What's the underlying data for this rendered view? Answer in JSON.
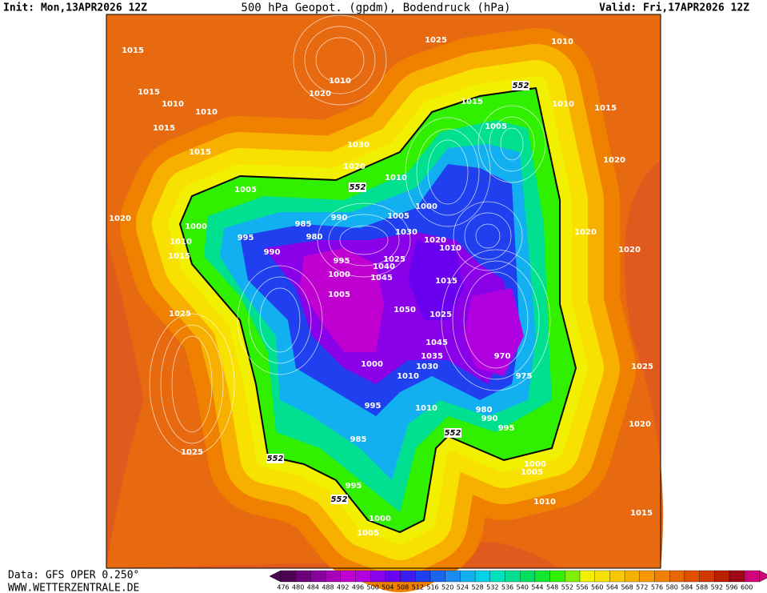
{
  "header": {
    "init": "Init: Mon,13APR2026 12Z",
    "title": "500 hPa Geopot. (gpdm), Bodendruck (hPa)",
    "valid": "Valid: Fri,17APR2026 12Z"
  },
  "footer": {
    "source": "Data: GFS OPER 0.250°",
    "site": "WWW.WETTERZENTRALE.DE"
  },
  "colorbar": {
    "levels": [
      476,
      480,
      484,
      488,
      492,
      496,
      500,
      504,
      508,
      512,
      516,
      520,
      524,
      528,
      532,
      536,
      540,
      544,
      548,
      552,
      556,
      560,
      564,
      568,
      572,
      576,
      580,
      584,
      588,
      592,
      596,
      600
    ],
    "colors": [
      "#4b0050",
      "#6a007a",
      "#8a009a",
      "#a800b8",
      "#c000d0",
      "#b000e0",
      "#8a00e8",
      "#6a00f0",
      "#3d1cf0",
      "#2040f0",
      "#1a64f0",
      "#1a8cf0",
      "#12b0f0",
      "#00d0e8",
      "#00e0c0",
      "#00e090",
      "#00e060",
      "#10e830",
      "#30f000",
      "#80f000",
      "#f0f000",
      "#f8e000",
      "#f8c800",
      "#f8b000",
      "#f89800",
      "#f08000",
      "#e86800",
      "#e05000",
      "#d03800",
      "#b82000",
      "#a00818",
      "#d0007a"
    ]
  },
  "map": {
    "labels": [
      "1025",
      "1015",
      "1015",
      "1010",
      "1010",
      "1015",
      "1015",
      "1010",
      "1020",
      "1030",
      "1020",
      "1010",
      "1015",
      "1005",
      "1010",
      "1010",
      "1015",
      "1020",
      "1020",
      "1020",
      "1025",
      "1025",
      "1025",
      "1020",
      "1015",
      "1005",
      "1000",
      "1020",
      "1015",
      "1010",
      "995",
      "990",
      "985",
      "980",
      "995",
      "1000",
      "1005",
      "1030",
      "1040",
      "1045",
      "1050",
      "1025",
      "1015",
      "970",
      "975",
      "980",
      "990",
      "995",
      "1000",
      "1005",
      "985",
      "995",
      "1000",
      "1005",
      "1010",
      "1000",
      "995",
      "990",
      "1020",
      "1025",
      "1030",
      "1010",
      "1035",
      "1045",
      "1010",
      "1010",
      "1000",
      "1005"
    ],
    "contour_552": [
      "552",
      "552",
      "552",
      "552",
      "552"
    ]
  }
}
